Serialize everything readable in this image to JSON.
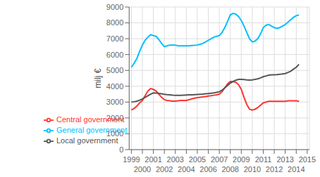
{
  "chart_data": {
    "type": "line",
    "ylabel": "milj €",
    "ylim": [
      0,
      9000
    ],
    "yticks": [
      0,
      1000,
      2000,
      3000,
      4000,
      5000,
      6000,
      7000,
      8000,
      9000
    ],
    "xlim": [
      1998.8,
      2015.2
    ],
    "xticks": [
      1999,
      2000,
      2001,
      2002,
      2003,
      2004,
      2005,
      2006,
      2007,
      2008,
      2009,
      2010,
      2011,
      2012,
      2013,
      2014,
      2015
    ],
    "grid": true,
    "legend": "lower left",
    "x": [
      1999,
      1999.25,
      1999.5,
      1999.75,
      2000,
      2000.25,
      2000.5,
      2000.75,
      2001,
      2001.25,
      2001.5,
      2001.75,
      2002,
      2002.25,
      2002.5,
      2002.75,
      2003,
      2003.25,
      2003.5,
      2003.75,
      2004,
      2004.25,
      2004.5,
      2004.75,
      2005,
      2005.25,
      2005.5,
      2005.75,
      2006,
      2006.25,
      2006.5,
      2006.75,
      2007,
      2007.25,
      2007.5,
      2007.75,
      2008,
      2008.25,
      2008.5,
      2008.75,
      2009,
      2009.25,
      2009.5,
      2009.75,
      2010,
      2010.25,
      2010.5,
      2010.75,
      2011,
      2011.25,
      2011.5,
      2011.75,
      2012,
      2012.25,
      2012.5,
      2012.75,
      2013,
      2013.25,
      2013.5,
      2013.75,
      2014,
      2014.25
    ],
    "series": [
      {
        "name": "General government",
        "color": "#00BFFF",
        "values": [
          5200,
          5450,
          5750,
          6200,
          6600,
          6900,
          7100,
          7250,
          7200,
          7150,
          6950,
          6700,
          6500,
          6550,
          6600,
          6600,
          6600,
          6550,
          6550,
          6550,
          6550,
          6550,
          6570,
          6580,
          6600,
          6650,
          6700,
          6800,
          6900,
          7000,
          7100,
          7150,
          7200,
          7400,
          7700,
          8100,
          8500,
          8600,
          8550,
          8400,
          8150,
          7800,
          7400,
          7000,
          6800,
          6850,
          7000,
          7300,
          7700,
          7850,
          7900,
          7800,
          7700,
          7650,
          7700,
          7800,
          7900,
          8050,
          8200,
          8350,
          8450,
          8500
        ]
      },
      {
        "name": "Central government",
        "color": "#FF3333",
        "values": [
          2500,
          2600,
          2750,
          2950,
          3100,
          3400,
          3700,
          3850,
          3800,
          3700,
          3500,
          3300,
          3150,
          3100,
          3080,
          3060,
          3060,
          3080,
          3100,
          3100,
          3100,
          3150,
          3200,
          3250,
          3280,
          3300,
          3320,
          3350,
          3380,
          3400,
          3430,
          3460,
          3500,
          3650,
          3900,
          4150,
          4300,
          4300,
          4250,
          4100,
          3800,
          3300,
          2850,
          2550,
          2500,
          2550,
          2650,
          2800,
          2950,
          3000,
          3050,
          3050,
          3050,
          3050,
          3050,
          3050,
          3050,
          3080,
          3080,
          3080,
          3080,
          3050
        ]
      },
      {
        "name": "Local government",
        "color": "#555555",
        "values": [
          3000,
          3020,
          3060,
          3120,
          3200,
          3300,
          3400,
          3500,
          3580,
          3570,
          3550,
          3520,
          3490,
          3470,
          3455,
          3440,
          3430,
          3430,
          3430,
          3440,
          3450,
          3455,
          3460,
          3470,
          3480,
          3490,
          3500,
          3520,
          3540,
          3560,
          3580,
          3610,
          3650,
          3750,
          3900,
          4050,
          4200,
          4300,
          4380,
          4430,
          4430,
          4420,
          4400,
          4390,
          4400,
          4430,
          4470,
          4530,
          4600,
          4650,
          4700,
          4720,
          4720,
          4730,
          4750,
          4780,
          4800,
          4870,
          4950,
          5080,
          5200,
          5380
        ]
      }
    ]
  }
}
